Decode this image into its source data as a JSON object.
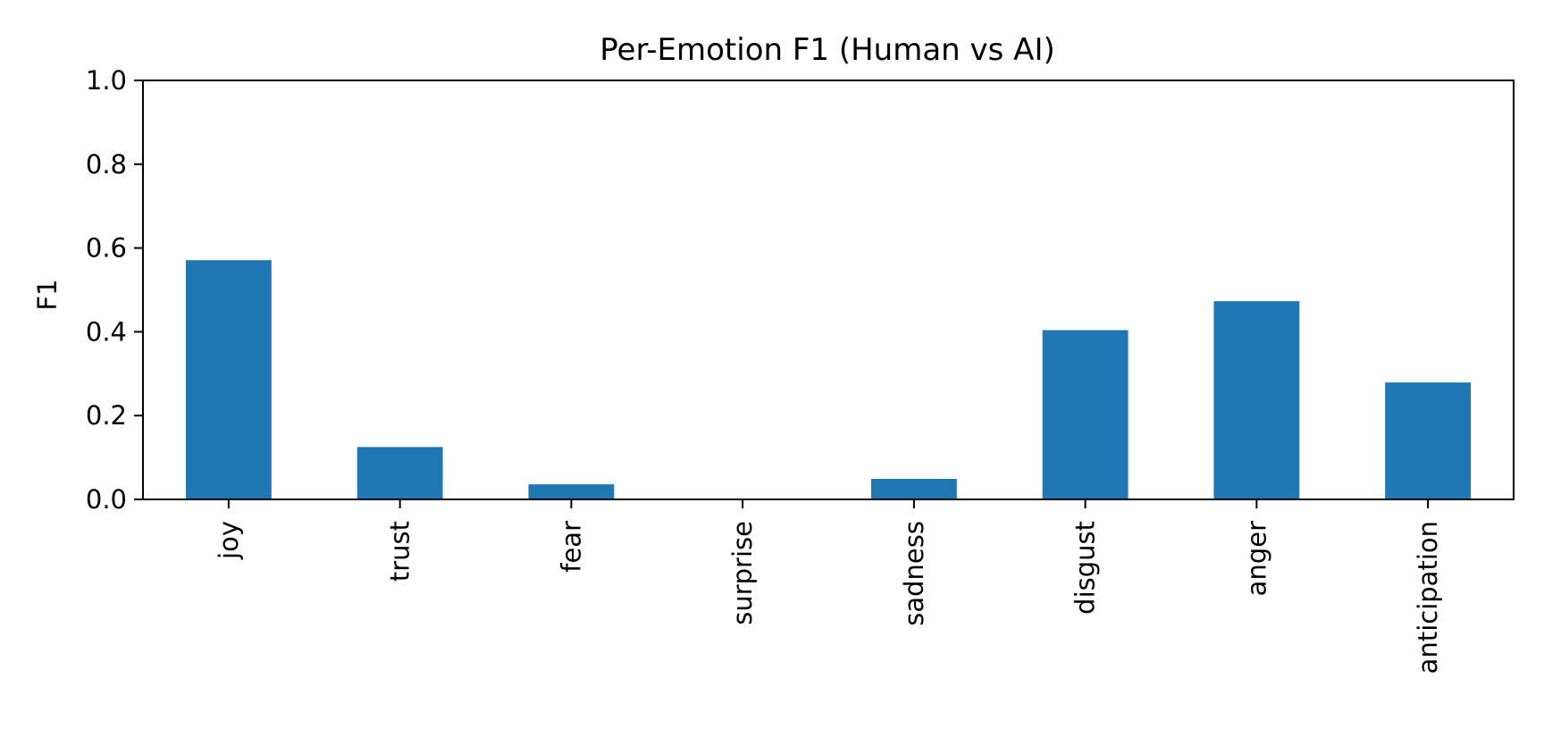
{
  "chart_data": {
    "type": "bar",
    "title": "Per-Emotion F1 (Human vs AI)",
    "xlabel": "",
    "ylabel": "F1",
    "categories": [
      "joy",
      "trust",
      "fear",
      "surprise",
      "sadness",
      "disgust",
      "anger",
      "anticipation"
    ],
    "values": [
      0.571,
      0.125,
      0.036,
      0.0,
      0.049,
      0.404,
      0.473,
      0.279
    ],
    "ylim": [
      0,
      1.0
    ],
    "yticks": [
      0.0,
      0.2,
      0.4,
      0.6,
      0.8,
      1.0
    ],
    "ytick_labels": [
      "0.0",
      "0.2",
      "0.4",
      "0.6",
      "0.8",
      "1.0"
    ],
    "grid": false,
    "legend": "none",
    "bar_color": "#1f77b4"
  }
}
